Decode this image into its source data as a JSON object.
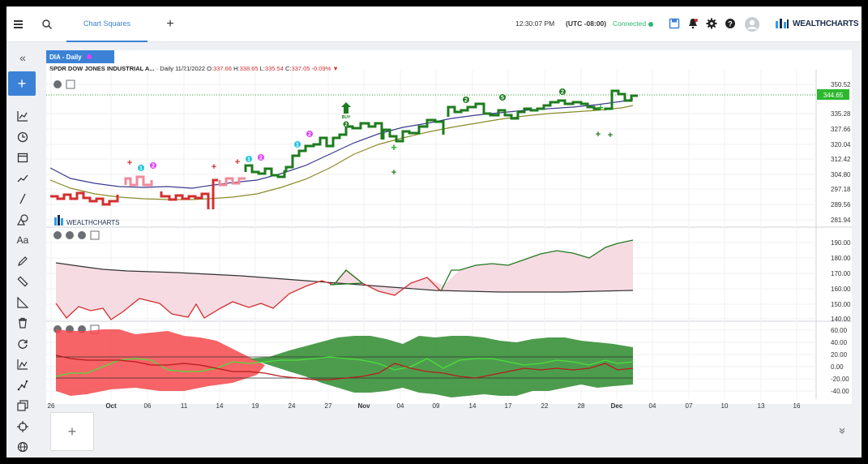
{
  "header": {
    "tab_label": "Chart Squares",
    "add_tab": "+",
    "time": "12:30:07 PM",
    "timezone": "(UTC -08:00)",
    "status": "Connected",
    "brand": "WEALTHCHARTS"
  },
  "sidebar": {
    "collapse": "«",
    "add": "+",
    "items": [
      "chart-type",
      "clock",
      "calendar",
      "trend",
      "line",
      "shapes",
      "text",
      "pencil",
      "ruler",
      "measure",
      "trash",
      "refresh",
      "indicator",
      "draw",
      "layers",
      "target",
      "globe"
    ]
  },
  "chart": {
    "symbol_tag": "DIA - Daily",
    "instrument": "SPDR DOW JONES INDUSTRIAL A...",
    "interval": "· Daily",
    "date": "11/21/2022",
    "open_label": "O:",
    "open": "337.66",
    "high_label": "H:",
    "high": "338.65",
    "low_label": "L:",
    "low": "335.54",
    "close_label": "C:",
    "close": "337.05",
    "change": "-0.09%",
    "last_price": "344.65",
    "watermark": "WEALTHCHARTS",
    "buy_label": "BUY",
    "price_axis": [
      "350.52",
      "335.28",
      "327.66",
      "320.04",
      "312.42",
      "304.80",
      "297.18",
      "289.56",
      "281.94"
    ],
    "rsi_axis": [
      "190.00",
      "180.00",
      "170.00",
      "160.00",
      "150.00",
      "140.00"
    ],
    "osc_axis": [
      "60.00",
      "40.00",
      "20.00",
      "0.00",
      "-20.00",
      "-40.00"
    ],
    "date_axis": [
      "26",
      "Oct",
      "06",
      "11",
      "14",
      "19",
      "24",
      "27",
      "Nov",
      "04",
      "09",
      "14",
      "17",
      "22",
      "28",
      "Dec",
      "04",
      "07",
      "10",
      "13",
      "16"
    ],
    "colors": {
      "up": "#1e7b1e",
      "down": "#d32f2f",
      "accent": "#3b82d6",
      "ma_fast": "#3b3b8f",
      "ma_slow": "#8a8a2a"
    }
  },
  "footer": {
    "add_panel": "+",
    "collapse": "»"
  }
}
